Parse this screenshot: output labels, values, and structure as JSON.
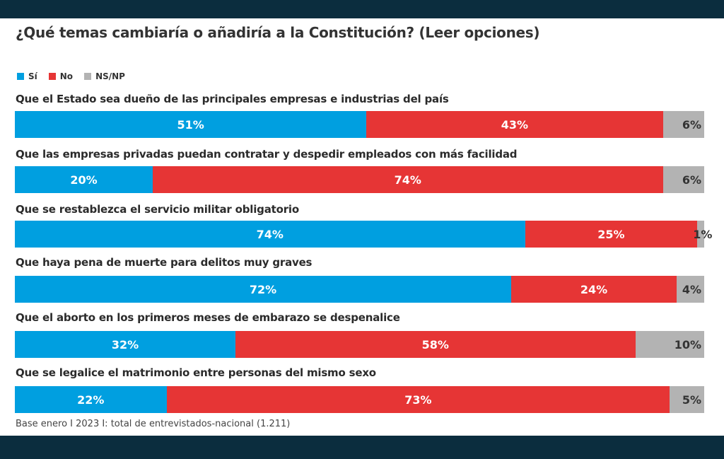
{
  "chart_data": {
    "type": "bar",
    "orientation": "horizontal-stacked-100",
    "title": "¿Qué temas cambiaría o añadiría a la Constitución? (Leer opciones)",
    "legend": [
      {
        "name": "Sí",
        "color": "#009fe0"
      },
      {
        "name": "No",
        "color": "#e63535"
      },
      {
        "name": "NS/NP",
        "color": "#b3b3b3"
      }
    ],
    "legend_position": "top-left",
    "categories": [
      "Que el Estado sea dueño de las principales empresas e industrias del país",
      "Que las empresas privadas puedan contratar y despedir empleados con más facilidad",
      "Que se restablezca el servicio militar obligatorio",
      "Que haya pena de muerte para delitos muy graves",
      "Que el aborto en los primeros meses de embarazo se despenalice",
      "Que se legalice el matrimonio entre personas del mismo sexo"
    ],
    "series": [
      {
        "name": "Sí",
        "values": [
          51,
          20,
          74,
          72,
          32,
          22
        ]
      },
      {
        "name": "No",
        "values": [
          43,
          74,
          25,
          24,
          58,
          73
        ]
      },
      {
        "name": "NS/NP",
        "values": [
          6,
          6,
          1,
          4,
          10,
          5
        ]
      }
    ],
    "value_suffix": "%",
    "xlim": [
      0,
      100
    ],
    "grid": false,
    "source": "Base enero I 2023 I: total de entrevistados-nacional (1.211)"
  }
}
